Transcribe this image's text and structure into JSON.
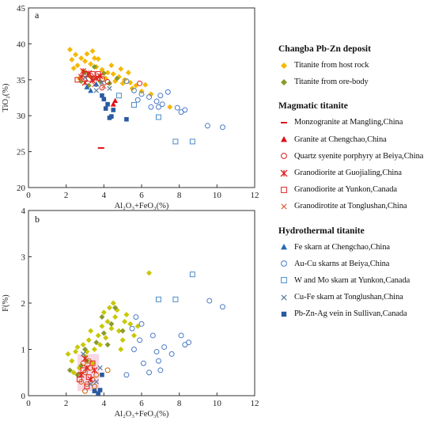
{
  "legend": {
    "groups": [
      {
        "title": "Changba Pb-Zn deposit",
        "items": [
          {
            "label": "Titanite from host rock",
            "symbol": "diamond",
            "color": "#f5b800"
          },
          {
            "label": "Titanite from ore-body",
            "symbol": "diamond",
            "color": "#8a9a2c"
          }
        ]
      },
      {
        "title": "Magmatic titanite",
        "items": [
          {
            "label": "Monzogranite at Mangling,China",
            "symbol": "dash",
            "color": "#e0101a"
          },
          {
            "label": "Granite at Chengchao,China",
            "symbol": "triangle",
            "color": "#e0101a"
          },
          {
            "label": "Quartz syenite porphyry at Beiya,China",
            "symbol": "circle-open",
            "color": "#d42020"
          },
          {
            "label": "Granodiorite at Guojialing,China",
            "symbol": "star",
            "color": "#e02020"
          },
          {
            "label": "Granodiorite at Yunkon,Canada",
            "symbol": "square-open",
            "color": "#e02020"
          },
          {
            "label": "Granodirotite at Tonglushan,China",
            "symbol": "cross",
            "color": "#e06040"
          }
        ]
      },
      {
        "title": "Hydrothermal titanite",
        "items": [
          {
            "label": "Fe skarn at Chengchao,China",
            "symbol": "triangle",
            "color": "#2a6ab0"
          },
          {
            "label": "Au-Cu skarns at Beiya,China",
            "symbol": "circle-open",
            "color": "#4a7ac8"
          },
          {
            "label": "W and Mo skarn at Yunkon,Canada",
            "symbol": "square-open",
            "color": "#4a8ac8"
          },
          {
            "label": "Cu-Fe skarn at Tonglushan,China",
            "symbol": "cross",
            "color": "#5a7a9a"
          },
          {
            "label": "Pb-Zn-Ag vein in Sullivan,Canada",
            "symbol": "square",
            "color": "#2a5aa0"
          }
        ]
      }
    ]
  },
  "chart_data": [
    {
      "panel": "a",
      "type": "scatter",
      "xlabel": "Al₂O₃+FeO₃(%)",
      "ylabel": "TiO₂(%)",
      "xlim": [
        0,
        12
      ],
      "ylim": [
        20,
        45
      ],
      "xticks": [
        0,
        2,
        4,
        6,
        8,
        10,
        12
      ],
      "yticks": [
        20,
        25,
        30,
        35,
        40,
        45
      ],
      "series": [
        {
          "symbol": "diamond",
          "color": "#f5b800",
          "points": [
            [
              2.2,
              39.2
            ],
            [
              2.5,
              38.5
            ],
            [
              2.8,
              38.0
            ],
            [
              3.0,
              37.6
            ],
            [
              3.3,
              37.2
            ],
            [
              2.6,
              37.0
            ],
            [
              3.6,
              36.8
            ],
            [
              3.9,
              36.4
            ],
            [
              4.2,
              36.0
            ],
            [
              4.5,
              35.8
            ],
            [
              4.8,
              35.4
            ],
            [
              5.1,
              35.0
            ],
            [
              5.4,
              34.6
            ],
            [
              5.7,
              34.2
            ],
            [
              3.1,
              38.6
            ],
            [
              3.5,
              38.0
            ],
            [
              2.4,
              36.6
            ],
            [
              2.9,
              36.2
            ],
            [
              3.8,
              35.5
            ],
            [
              4.1,
              35.2
            ],
            [
              4.6,
              34.8
            ],
            [
              5.0,
              34.5
            ],
            [
              5.5,
              33.8
            ],
            [
              6.0,
              33.4
            ],
            [
              6.5,
              33.0
            ],
            [
              3.2,
              35.6
            ],
            [
              2.7,
              35.2
            ],
            [
              2.3,
              37.8
            ],
            [
              4.4,
              37.0
            ],
            [
              4.9,
              36.5
            ],
            [
              5.3,
              36.0
            ],
            [
              7.5,
              31.2
            ],
            [
              6.2,
              34.3
            ],
            [
              3.4,
              39.0
            ],
            [
              3.7,
              37.9
            ]
          ]
        },
        {
          "symbol": "diamond",
          "color": "#8a9a2c",
          "points": [
            [
              3.0,
              36.0
            ],
            [
              3.4,
              35.2
            ],
            [
              3.8,
              34.8
            ],
            [
              4.3,
              34.5
            ],
            [
              2.8,
              34.8
            ],
            [
              3.5,
              36.8
            ],
            [
              4.7,
              35.2
            ],
            [
              3.2,
              34.2
            ],
            [
              4.0,
              35.9
            ]
          ]
        },
        {
          "symbol": "dash",
          "color": "#e0101a",
          "points": [
            [
              3.85,
              25.5
            ]
          ]
        },
        {
          "symbol": "triangle",
          "color": "#e0101a",
          "points": [
            [
              4.6,
              32.1
            ],
            [
              4.5,
              31.6
            ]
          ]
        },
        {
          "symbol": "circle-open",
          "color": "#d42020",
          "points": [
            [
              5.9,
              34.5
            ],
            [
              3.3,
              35.6
            ],
            [
              4.2,
              34.7
            ],
            [
              3.9,
              33.9
            ]
          ]
        },
        {
          "symbol": "star",
          "color": "#e02020",
          "points": [
            [
              2.8,
              35.4
            ],
            [
              3.2,
              35.9
            ],
            [
              3.6,
              35.2
            ],
            [
              3.0,
              34.6
            ],
            [
              3.4,
              34.9
            ],
            [
              3.8,
              35.5
            ],
            [
              2.9,
              36.2
            ]
          ]
        },
        {
          "symbol": "square-open",
          "color": "#e02020",
          "points": [
            [
              3.0,
              35.8
            ],
            [
              3.4,
              35.8
            ],
            [
              3.7,
              35.8
            ],
            [
              2.6,
              35.0
            ],
            [
              3.2,
              35.1
            ],
            [
              3.9,
              35.1
            ]
          ]
        },
        {
          "symbol": "cross",
          "color": "#e06040",
          "points": [
            [
              2.8,
              35.1
            ],
            [
              3.5,
              34.3
            ],
            [
              4.0,
              34.1
            ]
          ]
        },
        {
          "symbol": "triangle",
          "color": "#2a6ab0",
          "points": [
            [
              3.1,
              34.0
            ],
            [
              3.6,
              34.4
            ],
            [
              3.3,
              33.5
            ]
          ]
        },
        {
          "symbol": "circle-open",
          "color": "#4a7ac8",
          "points": [
            [
              5.2,
              34.8
            ],
            [
              5.6,
              33.5
            ],
            [
              6.0,
              33.0
            ],
            [
              6.4,
              32.6
            ],
            [
              6.8,
              32.0
            ],
            [
              7.1,
              31.6
            ],
            [
              6.5,
              31.2
            ],
            [
              7.4,
              33.3
            ],
            [
              7.0,
              32.8
            ],
            [
              7.9,
              31.1
            ],
            [
              8.3,
              30.8
            ],
            [
              8.1,
              30.5
            ],
            [
              5.8,
              32.2
            ],
            [
              9.5,
              28.6
            ],
            [
              10.3,
              28.4
            ],
            [
              6.9,
              31.2
            ]
          ]
        },
        {
          "symbol": "square-open",
          "color": "#4a8ac8",
          "points": [
            [
              7.8,
              26.4
            ],
            [
              8.7,
              26.4
            ],
            [
              6.9,
              29.8
            ],
            [
              5.6,
              31.5
            ],
            [
              4.8,
              32.8
            ]
          ]
        },
        {
          "symbol": "cross",
          "color": "#5a7a9a",
          "points": [
            [
              3.0,
              35.3
            ],
            [
              3.9,
              34.6
            ],
            [
              4.3,
              33.8
            ],
            [
              3.6,
              33.5
            ]
          ]
        },
        {
          "symbol": "square",
          "color": "#2a5aa0",
          "points": [
            [
              4.0,
              32.3
            ],
            [
              4.2,
              31.6
            ],
            [
              4.5,
              30.8
            ],
            [
              4.3,
              29.7
            ],
            [
              4.4,
              29.9
            ],
            [
              4.1,
              31.0
            ],
            [
              5.2,
              29.5
            ],
            [
              3.9,
              32.8
            ]
          ]
        }
      ]
    },
    {
      "panel": "b",
      "type": "scatter",
      "xlabel": "Al₂O₃+FeO₃(%)",
      "ylabel": "F(%)",
      "xlim": [
        0,
        12
      ],
      "ylim": [
        0,
        4
      ],
      "xticks": [
        0,
        2,
        4,
        6,
        8,
        10,
        12
      ],
      "yticks": [
        0,
        1,
        2,
        3,
        4
      ],
      "series": [
        {
          "symbol": "diamond",
          "color": "#c8c800",
          "points": [
            [
              2.1,
              0.9
            ],
            [
              2.3,
              0.75
            ],
            [
              2.5,
              0.95
            ],
            [
              2.7,
              0.6
            ],
            [
              2.9,
              1.1
            ],
            [
              3.0,
              0.85
            ],
            [
              3.2,
              1.2
            ],
            [
              3.4,
              0.7
            ],
            [
              3.5,
              1.0
            ],
            [
              3.7,
              1.3
            ],
            [
              3.9,
              1.5
            ],
            [
              4.0,
              1.8
            ],
            [
              4.2,
              1.6
            ],
            [
              4.3,
              1.9
            ],
            [
              4.5,
              2.0
            ],
            [
              4.6,
              1.7
            ],
            [
              4.8,
              1.4
            ],
            [
              5.0,
              1.2
            ],
            [
              5.2,
              1.75
            ],
            [
              5.4,
              1.55
            ],
            [
              3.8,
              1.1
            ],
            [
              4.1,
              1.25
            ],
            [
              4.4,
              1.45
            ],
            [
              2.4,
              0.5
            ],
            [
              2.6,
              1.05
            ],
            [
              3.1,
              0.95
            ],
            [
              3.3,
              1.4
            ],
            [
              4.7,
              1.85
            ],
            [
              5.1,
              1.6
            ],
            [
              5.6,
              1.3
            ],
            [
              4.9,
              1.0
            ],
            [
              6.4,
              2.65
            ],
            [
              5.8,
              1.5
            ]
          ]
        },
        {
          "symbol": "diamond",
          "color": "#8a9a2c",
          "points": [
            [
              2.2,
              0.55
            ],
            [
              2.8,
              0.65
            ],
            [
              3.1,
              0.75
            ],
            [
              3.6,
              1.15
            ],
            [
              4.0,
              1.35
            ],
            [
              4.4,
              1.55
            ],
            [
              3.9,
              1.7
            ],
            [
              4.6,
              1.9
            ],
            [
              2.6,
              0.45
            ],
            [
              3.0,
              1.0
            ],
            [
              5.0,
              1.4
            ],
            [
              4.2,
              1.1
            ]
          ]
        },
        {
          "symbol": "circle-open",
          "color": "#c86400",
          "points": [
            [
              2.8,
              0.3
            ],
            [
              3.0,
              0.5
            ],
            [
              3.1,
              0.25
            ],
            [
              3.3,
              0.6
            ],
            [
              3.4,
              0.35
            ],
            [
              3.2,
              0.75
            ],
            [
              2.9,
              0.7
            ],
            [
              3.6,
              0.45
            ],
            [
              2.7,
              0.45
            ],
            [
              3.5,
              0.2
            ],
            [
              3.0,
              0.1
            ],
            [
              4.2,
              0.55
            ]
          ]
        },
        {
          "symbol": "star",
          "color": "#e02020",
          "points": [
            [
              2.8,
              0.45
            ],
            [
              3.1,
              0.6
            ],
            [
              3.3,
              0.35
            ],
            [
              3.0,
              0.8
            ],
            [
              3.5,
              0.55
            ]
          ]
        },
        {
          "symbol": "square-open",
          "color": "#e02020",
          "points": [
            [
              2.9,
              0.55
            ],
            [
              3.2,
              0.4
            ],
            [
              3.4,
              0.7
            ],
            [
              2.7,
              0.35
            ],
            [
              3.1,
              0.2
            ]
          ]
        },
        {
          "symbol": "circle-open",
          "color": "#4a7ac8",
          "points": [
            [
              9.6,
              2.05
            ],
            [
              10.3,
              1.92
            ],
            [
              5.7,
              1.7
            ],
            [
              6.0,
              1.55
            ],
            [
              5.5,
              1.45
            ],
            [
              5.9,
              1.2
            ],
            [
              6.6,
              1.3
            ],
            [
              6.8,
              0.95
            ],
            [
              7.2,
              1.05
            ],
            [
              8.1,
              1.3
            ],
            [
              8.3,
              1.1
            ],
            [
              8.5,
              1.15
            ],
            [
              7.6,
              0.9
            ],
            [
              6.1,
              0.7
            ],
            [
              7.0,
              0.55
            ],
            [
              6.4,
              0.5
            ],
            [
              5.2,
              0.45
            ],
            [
              5.6,
              1.0
            ],
            [
              6.9,
              0.75
            ]
          ]
        },
        {
          "symbol": "square-open",
          "color": "#4a8ac8",
          "points": [
            [
              8.7,
              2.62
            ],
            [
              7.8,
              2.08
            ],
            [
              6.9,
              2.08
            ]
          ]
        },
        {
          "symbol": "cross",
          "color": "#5a7a9a",
          "points": [
            [
              3.3,
              0.25
            ],
            [
              3.6,
              0.3
            ],
            [
              2.9,
              0.9
            ],
            [
              3.8,
              0.6
            ]
          ]
        },
        {
          "symbol": "square",
          "color": "#2a5aa0",
          "points": [
            [
              3.5,
              0.1
            ],
            [
              3.8,
              0.12
            ],
            [
              3.7,
              0.05
            ],
            [
              3.9,
              0.45
            ]
          ]
        }
      ]
    }
  ]
}
